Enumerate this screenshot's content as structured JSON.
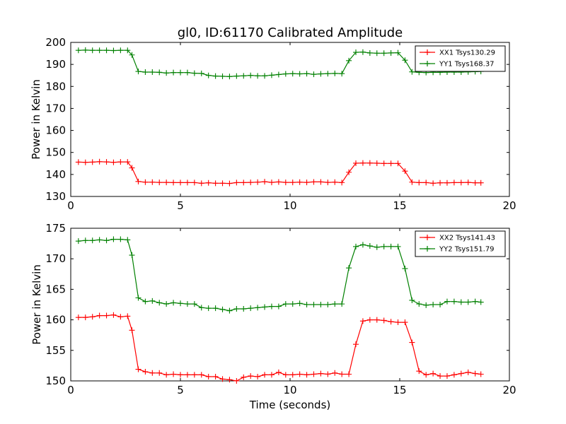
{
  "title": "gl0, ID:61170 Calibrated Amplitude",
  "colors": {
    "xx": "#ff0000",
    "yy": "#008000"
  },
  "chart_data": [
    {
      "type": "line",
      "title": "gl0, ID:61170 Calibrated Amplitude",
      "xlabel": "",
      "ylabel": "Power in Kelvin",
      "xlim": [
        0,
        20
      ],
      "ylim": [
        130,
        200
      ],
      "xticks": [
        0,
        5,
        10,
        15,
        20
      ],
      "yticks": [
        130,
        140,
        150,
        160,
        170,
        180,
        190,
        200
      ],
      "grid": false,
      "legend_position": "top-right",
      "x": [
        0.35,
        0.67,
        0.99,
        1.31,
        1.63,
        1.95,
        2.27,
        2.59,
        2.79,
        3.08,
        3.4,
        3.72,
        4.04,
        4.36,
        4.68,
        5.0,
        5.32,
        5.64,
        5.96,
        6.28,
        6.6,
        6.92,
        7.24,
        7.56,
        7.88,
        8.2,
        8.52,
        8.84,
        9.16,
        9.48,
        9.8,
        10.12,
        10.44,
        10.76,
        11.08,
        11.4,
        11.72,
        12.04,
        12.36,
        12.68,
        13.0,
        13.32,
        13.64,
        13.96,
        14.28,
        14.6,
        14.92,
        15.24,
        15.56,
        15.88,
        16.2,
        16.52,
        16.84,
        17.16,
        17.48,
        17.8,
        18.12,
        18.44,
        18.7
      ],
      "series": [
        {
          "name": "XX1 Tsys130.29",
          "color": "#ff0000",
          "values": [
            145.6,
            145.5,
            145.6,
            145.8,
            145.7,
            145.5,
            145.7,
            145.7,
            143.0,
            136.8,
            136.5,
            136.5,
            136.4,
            136.4,
            136.3,
            136.3,
            136.3,
            136.3,
            136.0,
            136.2,
            136.0,
            136.0,
            135.9,
            136.3,
            136.3,
            136.4,
            136.5,
            136.7,
            136.4,
            136.6,
            136.4,
            136.4,
            136.5,
            136.4,
            136.6,
            136.6,
            136.4,
            136.5,
            136.3,
            141.0,
            145.1,
            145.2,
            145.2,
            145.1,
            145.0,
            145.0,
            145.0,
            141.5,
            136.5,
            136.3,
            136.3,
            136.0,
            136.2,
            136.2,
            136.3,
            136.3,
            136.4,
            136.2,
            136.2
          ]
        },
        {
          "name": "YY1 Tsys168.37",
          "color": "#008000",
          "values": [
            196.4,
            196.5,
            196.4,
            196.4,
            196.4,
            196.3,
            196.4,
            196.4,
            194.3,
            186.8,
            186.5,
            186.5,
            186.4,
            186.1,
            186.3,
            186.3,
            186.3,
            186.0,
            185.9,
            185.0,
            184.7,
            184.6,
            184.5,
            184.7,
            184.8,
            185.0,
            184.8,
            184.8,
            185.1,
            185.4,
            185.7,
            185.8,
            185.7,
            185.8,
            185.5,
            185.7,
            185.8,
            185.9,
            185.8,
            191.7,
            195.5,
            195.6,
            195.2,
            195.1,
            195.1,
            195.2,
            195.3,
            191.9,
            186.6,
            186.4,
            186.3,
            186.4,
            186.4,
            186.5,
            186.5,
            186.5,
            186.6,
            186.7,
            186.8
          ]
        }
      ]
    },
    {
      "type": "line",
      "title": "",
      "xlabel": "Time (seconds)",
      "ylabel": "Power in Kelvin",
      "xlim": [
        0,
        20
      ],
      "ylim": [
        150,
        175
      ],
      "xticks": [
        0,
        5,
        10,
        15,
        20
      ],
      "yticks": [
        150,
        155,
        160,
        165,
        170,
        175
      ],
      "grid": false,
      "legend_position": "top-right",
      "x": [
        0.35,
        0.67,
        0.99,
        1.31,
        1.63,
        1.95,
        2.27,
        2.59,
        2.79,
        3.08,
        3.4,
        3.72,
        4.04,
        4.36,
        4.68,
        5.0,
        5.32,
        5.64,
        5.96,
        6.28,
        6.6,
        6.92,
        7.24,
        7.56,
        7.88,
        8.2,
        8.52,
        8.84,
        9.16,
        9.48,
        9.8,
        10.12,
        10.44,
        10.76,
        11.08,
        11.4,
        11.72,
        12.04,
        12.36,
        12.68,
        13.0,
        13.32,
        13.64,
        13.96,
        14.28,
        14.6,
        14.92,
        15.24,
        15.56,
        15.88,
        16.2,
        16.52,
        16.84,
        17.16,
        17.48,
        17.8,
        18.12,
        18.44,
        18.7
      ],
      "series": [
        {
          "name": "XX2 Tsys141.43",
          "color": "#ff0000",
          "values": [
            160.4,
            160.4,
            160.5,
            160.7,
            160.7,
            160.8,
            160.5,
            160.6,
            158.3,
            151.9,
            151.5,
            151.3,
            151.3,
            151.0,
            151.1,
            151.0,
            151.0,
            151.0,
            151.0,
            150.7,
            150.7,
            150.3,
            150.2,
            150.0,
            150.6,
            150.8,
            150.7,
            151.0,
            151.0,
            151.4,
            151.0,
            151.0,
            151.1,
            151.0,
            151.1,
            151.2,
            151.1,
            151.3,
            151.1,
            151.1,
            156.0,
            159.8,
            160.0,
            160.0,
            159.9,
            159.7,
            159.6,
            159.6,
            156.3,
            151.6,
            151.0,
            151.2,
            150.8,
            150.8,
            151.0,
            151.2,
            151.4,
            151.2,
            151.1
          ]
        },
        {
          "name": "YY2 Tsys151.79",
          "color": "#008000",
          "values": [
            172.9,
            173.0,
            173.0,
            173.1,
            173.0,
            173.2,
            173.2,
            173.1,
            170.6,
            163.6,
            163.0,
            163.1,
            162.8,
            162.6,
            162.8,
            162.7,
            162.6,
            162.6,
            162.0,
            161.9,
            161.9,
            161.7,
            161.5,
            161.8,
            161.8,
            161.9,
            162.0,
            162.1,
            162.2,
            162.2,
            162.6,
            162.6,
            162.7,
            162.5,
            162.5,
            162.5,
            162.5,
            162.6,
            162.6,
            168.5,
            172.0,
            172.3,
            172.1,
            171.9,
            172.0,
            172.0,
            172.0,
            168.4,
            163.2,
            162.6,
            162.4,
            162.5,
            162.5,
            163.0,
            163.0,
            162.9,
            162.9,
            163.0,
            162.9
          ]
        }
      ]
    }
  ]
}
